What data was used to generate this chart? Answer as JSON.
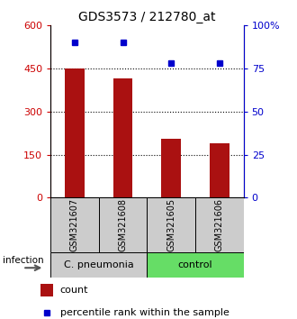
{
  "title": "GDS3573 / 212780_at",
  "samples": [
    "GSM321607",
    "GSM321608",
    "GSM321605",
    "GSM321606"
  ],
  "counts": [
    450,
    415,
    205,
    190
  ],
  "percentiles": [
    90,
    90,
    78,
    78
  ],
  "ylim_left": [
    0,
    600
  ],
  "ylim_right": [
    0,
    100
  ],
  "yticks_left": [
    0,
    150,
    300,
    450,
    600
  ],
  "yticks_right": [
    0,
    25,
    50,
    75,
    100
  ],
  "bar_color": "#aa1111",
  "dot_color": "#0000cc",
  "group1_label": "C. pneumonia",
  "group2_label": "control",
  "group1_color": "#cccccc",
  "group2_color": "#66dd66",
  "infection_label": "infection",
  "legend_count": "count",
  "legend_percentile": "percentile rank within the sample",
  "title_fontsize": 10,
  "tick_fontsize": 8,
  "label_fontsize": 8,
  "sample_label_color": "#cccccc",
  "bar_width": 0.4
}
